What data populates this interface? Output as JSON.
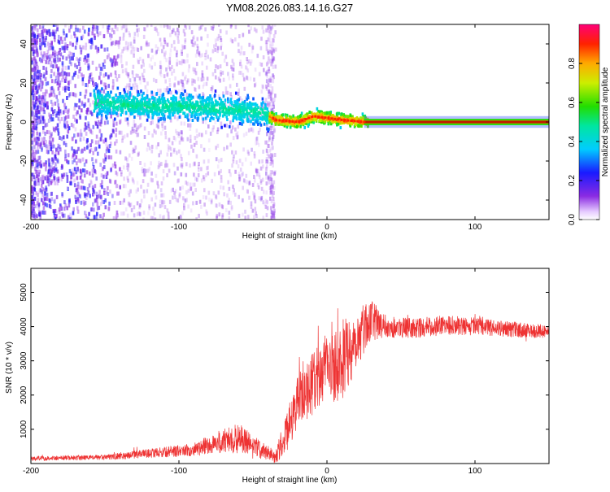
{
  "title": "YM08.2026.083.14.16.G27",
  "chart_data": [
    {
      "type": "heatmap",
      "description_ref": "spectrogram",
      "xlabel": "Height of straight line (km)",
      "ylabel": "Frequency (Hz)",
      "xlim": [
        -200,
        150
      ],
      "ylim": [
        -50,
        50
      ],
      "xticks": [
        -200,
        -100,
        0,
        100
      ],
      "xtick_labels": [
        "-200",
        "-100",
        "0",
        "100"
      ],
      "yticks": [
        -40,
        -20,
        0,
        20,
        40
      ],
      "ytick_labels": [
        "-40",
        "-20",
        "0",
        "20",
        "40"
      ],
      "colorbar": {
        "label": "Normalized spectral amplitude",
        "range": [
          0,
          1
        ],
        "ticks": [
          0.0,
          0.2,
          0.4,
          0.6,
          0.8
        ],
        "tick_labels": [
          "0.0",
          "0.2",
          "0.4",
          "0.6",
          "0.8"
        ]
      },
      "peak_track": [
        {
          "x": -155,
          "f": 10
        },
        {
          "x": -140,
          "f": 9
        },
        {
          "x": -120,
          "f": 8
        },
        {
          "x": -100,
          "f": 8
        },
        {
          "x": -80,
          "f": 7
        },
        {
          "x": -60,
          "f": 6
        },
        {
          "x": -45,
          "f": 5
        },
        {
          "x": -35,
          "f": 1
        },
        {
          "x": -20,
          "f": 0
        },
        {
          "x": -10,
          "f": 3
        },
        {
          "x": 0,
          "f": 2
        },
        {
          "x": 10,
          "f": 1
        },
        {
          "x": 25,
          "f": 0
        },
        {
          "x": 150,
          "f": 0
        }
      ]
    },
    {
      "type": "line",
      "xlabel": "Height of straight line (km)",
      "ylabel": "SNR (10 * v/v)",
      "xlim": [
        -200,
        150
      ],
      "ylim": [
        0,
        5700
      ],
      "xticks": [
        -200,
        -100,
        0,
        100
      ],
      "xtick_labels": [
        "-200",
        "-100",
        "0",
        "100"
      ],
      "yticks": [
        1000,
        2000,
        3000,
        4000,
        5000
      ],
      "ytick_labels": [
        "1000",
        "2000",
        "3000",
        "4000",
        "5000"
      ],
      "color": "#ee3333",
      "envelope": [
        {
          "x": -200,
          "mean": 150,
          "spread": 100
        },
        {
          "x": -150,
          "mean": 180,
          "spread": 120
        },
        {
          "x": -120,
          "mean": 300,
          "spread": 200
        },
        {
          "x": -90,
          "mean": 400,
          "spread": 300
        },
        {
          "x": -75,
          "mean": 600,
          "spread": 500
        },
        {
          "x": -60,
          "mean": 750,
          "spread": 700
        },
        {
          "x": -45,
          "mean": 400,
          "spread": 400
        },
        {
          "x": -35,
          "mean": 200,
          "spread": 300
        },
        {
          "x": -28,
          "mean": 800,
          "spread": 900
        },
        {
          "x": -20,
          "mean": 1800,
          "spread": 1200
        },
        {
          "x": -10,
          "mean": 2300,
          "spread": 1400
        },
        {
          "x": 0,
          "mean": 2800,
          "spread": 1600
        },
        {
          "x": 10,
          "mean": 3000,
          "spread": 1800
        },
        {
          "x": 20,
          "mean": 3600,
          "spread": 1400
        },
        {
          "x": 28,
          "mean": 4200,
          "spread": 1000
        },
        {
          "x": 40,
          "mean": 4000,
          "spread": 500
        },
        {
          "x": 60,
          "mean": 3950,
          "spread": 450
        },
        {
          "x": 80,
          "mean": 4050,
          "spread": 450
        },
        {
          "x": 100,
          "mean": 4000,
          "spread": 400
        },
        {
          "x": 130,
          "mean": 3900,
          "spread": 350
        },
        {
          "x": 150,
          "mean": 3850,
          "spread": 300
        }
      ]
    }
  ]
}
